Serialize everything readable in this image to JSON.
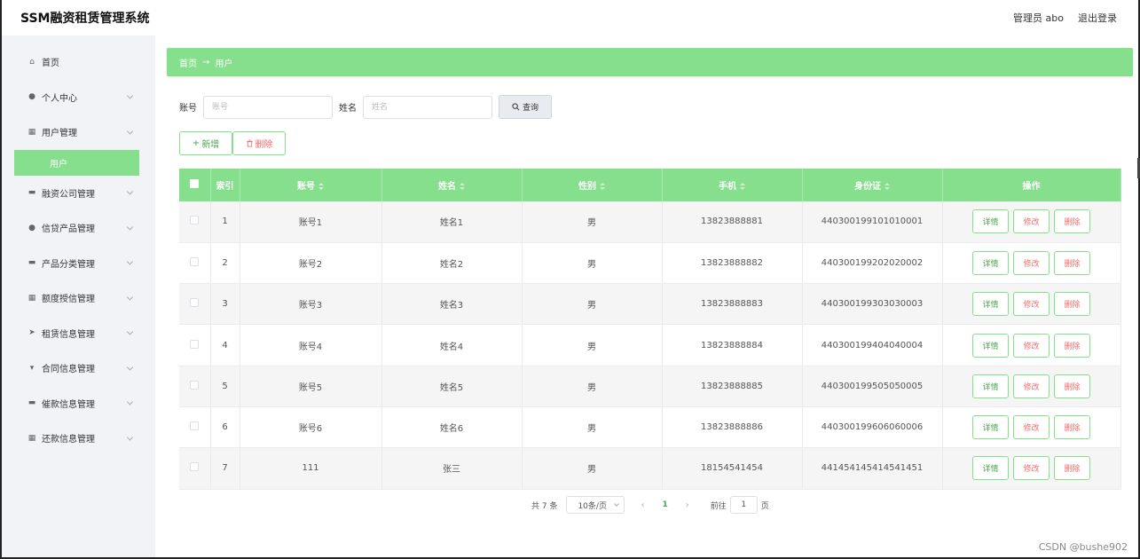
{
  "header": {
    "app_title": "SSM融资租赁管理系统",
    "user_label": "管理员 abo",
    "logout_label": "退出登录"
  },
  "sidebar": {
    "items": [
      {
        "label": "首页",
        "icon": "home-icon",
        "glyph": "⌂"
      },
      {
        "label": "个人中心",
        "icon": "user-icon",
        "glyph": "●"
      },
      {
        "label": "用户管理",
        "icon": "grid-icon",
        "glyph": "▦"
      },
      {
        "label": "融资公司管理",
        "icon": "chat-icon",
        "glyph": "▬"
      },
      {
        "label": "信贷产品管理",
        "icon": "location-icon",
        "glyph": "●"
      },
      {
        "label": "产品分类管理",
        "icon": "message-icon",
        "glyph": "▬"
      },
      {
        "label": "额度授信管理",
        "icon": "grid-icon",
        "glyph": "▦"
      },
      {
        "label": "租赁信息管理",
        "icon": "send-icon",
        "glyph": "➤"
      },
      {
        "label": "合同信息管理",
        "icon": "trophy-icon",
        "glyph": "▾"
      },
      {
        "label": "催款信息管理",
        "icon": "inbox-icon",
        "glyph": "▬"
      },
      {
        "label": "还款信息管理",
        "icon": "grid-icon",
        "glyph": "▦"
      }
    ],
    "active_sub": "用户"
  },
  "breadcrumb": {
    "home": "首页",
    "separator": "→",
    "current": "用户"
  },
  "search": {
    "account_label": "账号",
    "account_placeholder": "账号",
    "name_label": "姓名",
    "name_placeholder": "姓名",
    "query_label": "查询"
  },
  "actions": {
    "add_label": "新增",
    "delete_label": "删除"
  },
  "table": {
    "headers": [
      "索引",
      "账号",
      "姓名",
      "性别",
      "手机",
      "身份证",
      "操作"
    ],
    "rows": [
      {
        "index": "1",
        "account": "账号1",
        "name": "姓名1",
        "gender": "男",
        "phone": "13823888881",
        "id_card": "440300199101010001"
      },
      {
        "index": "2",
        "account": "账号2",
        "name": "姓名2",
        "gender": "男",
        "phone": "13823888882",
        "id_card": "440300199202020002"
      },
      {
        "index": "3",
        "account": "账号3",
        "name": "姓名3",
        "gender": "男",
        "phone": "13823888883",
        "id_card": "440300199303030003"
      },
      {
        "index": "4",
        "account": "账号4",
        "name": "姓名4",
        "gender": "男",
        "phone": "13823888884",
        "id_card": "440300199404040004"
      },
      {
        "index": "5",
        "account": "账号5",
        "name": "姓名5",
        "gender": "男",
        "phone": "13823888885",
        "id_card": "440300199505050005"
      },
      {
        "index": "6",
        "account": "账号6",
        "name": "姓名6",
        "gender": "男",
        "phone": "13823888886",
        "id_card": "440300199606060006"
      },
      {
        "index": "7",
        "account": "111",
        "name": "张三",
        "gender": "男",
        "phone": "18154541454",
        "id_card": "441454145414541451"
      }
    ],
    "op_detail": "详情",
    "op_edit": "修改",
    "op_delete": "删除"
  },
  "pagination": {
    "total": "共 7 条",
    "page_size": "10条/页",
    "prev": "‹",
    "current_page": "1",
    "next": "›",
    "goto_label": "前往",
    "goto_value": "1",
    "page_suffix": "页"
  },
  "watermark": "CSDN @bushe902",
  "colors": {
    "accent": "#86df8d",
    "danger": "#f56c6c"
  }
}
